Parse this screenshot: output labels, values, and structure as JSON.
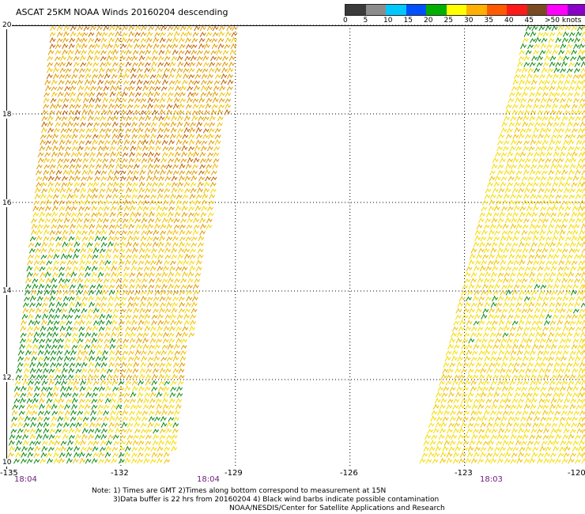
{
  "title": "ASCAT 25KM NOAA Winds 20160204 descending",
  "legend": {
    "colors": [
      "#3a3a3a",
      "#8c8c8c",
      "#00c8ff",
      "#0050ff",
      "#00b000",
      "#ffff00",
      "#ffb000",
      "#ff5a00",
      "#ff1a1a",
      "#7a4a20",
      "#ff00ff",
      "#8a00c8",
      "#4b0082"
    ],
    "ticks": [
      "0",
      "5",
      "10",
      "15",
      "20",
      "25",
      "30",
      "35",
      "40",
      "45",
      ">50 knots"
    ]
  },
  "chart_data": {
    "type": "map",
    "lat_labels": [
      "20",
      "18",
      "16",
      "14",
      "12",
      "10"
    ],
    "lon_labels": [
      "-135",
      "-132",
      "-129",
      "-126",
      "-123",
      "-120"
    ],
    "time_labels": [
      "18:04",
      "18:04",
      "18:03"
    ],
    "swaths": [
      {
        "name": "west swath",
        "lon_range_bottom": [
          -135,
          -130
        ],
        "lon_range_top": [
          -132.8,
          -129.0
        ],
        "dominant_speed_knots": "20-30"
      },
      {
        "name": "east swath",
        "lon_range_bottom": [
          -124.6,
          -120
        ],
        "lon_range_top": [
          -121.8,
          -120
        ],
        "dominant_speed_knots": "20-25"
      }
    ]
  },
  "notes": {
    "line1": "Note: 1) Times are GMT 2)Times along bottom correspond to measurement at 15N",
    "line2": "3)Data buffer is 22 hrs from 20160204 4) Black wind barbs indicate possible contamination",
    "line3": "NOAA/NESDIS/Center for Satellite Applications and Research"
  }
}
